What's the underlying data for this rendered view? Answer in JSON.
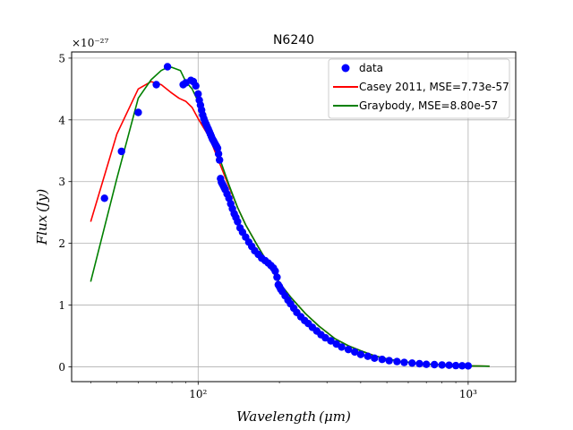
{
  "chart_data": {
    "type": "scatter",
    "title": "N6240",
    "xlabel": "Wavelength (μm)",
    "ylabel": "Flux (Jy)",
    "y_multiplier": "×10⁻²⁷",
    "x_scale": "log",
    "xlim": [
      34,
      1500
    ],
    "ylim": [
      -0.24,
      5.1
    ],
    "x_ticks": [
      {
        "value": 100,
        "label": "10²"
      },
      {
        "value": 1000,
        "label": "10³"
      }
    ],
    "y_ticks": [
      {
        "value": 0,
        "label": "0"
      },
      {
        "value": 1,
        "label": "1"
      },
      {
        "value": 2,
        "label": "2"
      },
      {
        "value": 3,
        "label": "3"
      },
      {
        "value": 4,
        "label": "4"
      },
      {
        "value": 5,
        "label": "5"
      }
    ],
    "grid": true,
    "legend_position": "upper-right",
    "series": [
      {
        "name": "data",
        "kind": "scatter",
        "color": "#0000ff",
        "x": [
          45,
          52,
          60,
          70,
          77,
          88,
          90,
          94,
          96,
          98,
          100,
          101,
          102,
          103,
          104,
          105,
          106,
          107,
          108,
          109,
          110,
          111,
          112,
          113,
          114,
          115,
          116,
          117,
          118,
          119,
          120,
          121,
          122,
          123,
          124,
          125,
          126,
          128,
          130,
          132,
          134,
          136,
          138,
          140,
          143,
          146,
          150,
          154,
          158,
          162,
          167,
          172,
          177,
          182,
          186,
          190,
          193,
          196,
          198,
          200,
          202,
          205,
          210,
          215,
          220,
          226,
          232,
          240,
          248,
          256,
          265,
          275,
          285,
          296,
          310,
          325,
          340,
          360,
          380,
          400,
          425,
          450,
          480,
          510,
          545,
          580,
          620,
          660,
          700,
          750,
          800,
          850,
          900,
          950,
          1000
        ],
        "y": [
          2.73,
          3.49,
          4.12,
          4.57,
          4.86,
          4.57,
          4.6,
          4.64,
          4.62,
          4.55,
          4.42,
          4.32,
          4.24,
          4.16,
          4.08,
          4.02,
          3.97,
          3.93,
          3.89,
          3.85,
          3.81,
          3.77,
          3.73,
          3.69,
          3.66,
          3.63,
          3.6,
          3.57,
          3.54,
          3.45,
          3.35,
          3.05,
          2.99,
          2.96,
          2.93,
          2.9,
          2.87,
          2.8,
          2.73,
          2.64,
          2.56,
          2.48,
          2.42,
          2.35,
          2.25,
          2.18,
          2.1,
          2.02,
          1.95,
          1.88,
          1.82,
          1.76,
          1.72,
          1.68,
          1.64,
          1.6,
          1.55,
          1.45,
          1.33,
          1.3,
          1.26,
          1.22,
          1.15,
          1.08,
          1.02,
          0.95,
          0.88,
          0.81,
          0.75,
          0.7,
          0.64,
          0.58,
          0.52,
          0.47,
          0.42,
          0.37,
          0.32,
          0.28,
          0.24,
          0.2,
          0.17,
          0.14,
          0.12,
          0.1,
          0.085,
          0.07,
          0.06,
          0.05,
          0.04,
          0.035,
          0.03,
          0.025,
          0.02,
          0.017,
          0.015
        ]
      },
      {
        "name": "Casey 2011, MSE=7.73e-57",
        "kind": "line",
        "color": "#ff0000",
        "x": [
          40,
          50,
          60,
          67,
          73,
          79,
          85,
          90,
          95,
          100,
          110,
          120,
          130,
          140,
          150,
          165,
          180,
          200,
          220,
          250,
          280,
          320,
          360,
          400,
          450,
          500,
          560,
          630,
          700,
          800,
          900,
          1000,
          1100,
          1200
        ],
        "y": [
          2.35,
          3.77,
          4.5,
          4.62,
          4.57,
          4.45,
          4.35,
          4.3,
          4.2,
          4.02,
          3.72,
          3.3,
          2.92,
          2.58,
          2.3,
          1.98,
          1.7,
          1.36,
          1.13,
          0.86,
          0.66,
          0.46,
          0.34,
          0.26,
          0.18,
          0.13,
          0.09,
          0.065,
          0.045,
          0.03,
          0.02,
          0.015,
          0.012,
          0.01
        ]
      },
      {
        "name": "Graybody, MSE=8.80e-57",
        "kind": "line",
        "color": "#008000",
        "x": [
          40,
          50,
          60,
          67,
          73,
          77,
          80,
          86,
          90,
          95,
          100,
          110,
          120,
          130,
          140,
          150,
          165,
          180,
          200,
          220,
          250,
          280,
          320,
          360,
          400,
          450,
          500,
          560,
          630,
          700,
          800,
          900,
          1000,
          1100,
          1200
        ],
        "y": [
          1.38,
          3.05,
          4.35,
          4.65,
          4.8,
          4.85,
          4.85,
          4.8,
          4.62,
          4.5,
          4.3,
          3.85,
          3.38,
          2.95,
          2.58,
          2.3,
          1.98,
          1.7,
          1.36,
          1.13,
          0.86,
          0.66,
          0.46,
          0.34,
          0.26,
          0.18,
          0.13,
          0.09,
          0.065,
          0.045,
          0.03,
          0.02,
          0.015,
          0.012,
          0.01
        ]
      }
    ]
  }
}
